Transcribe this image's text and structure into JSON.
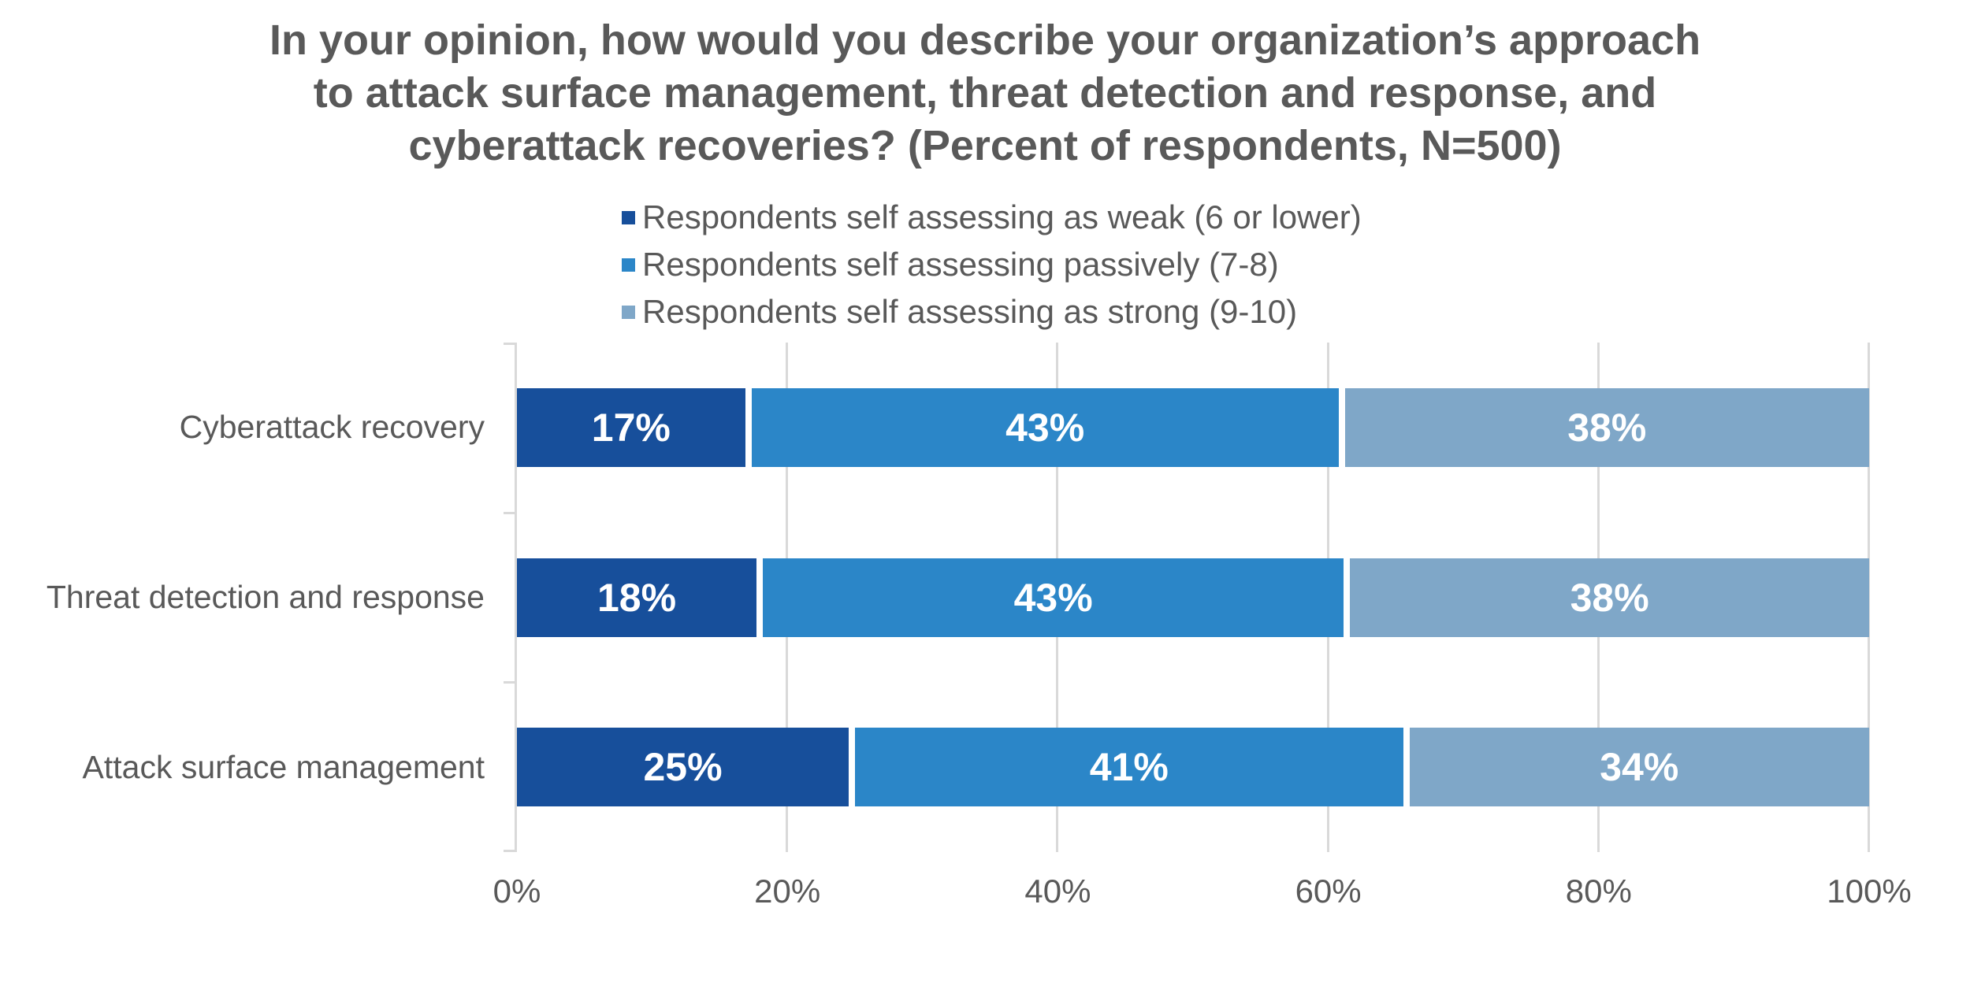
{
  "title": {
    "line1": "In your opinion, how would you describe your organization’s approach",
    "line2": "to attack surface management, threat detection and response, and",
    "line3": "cyberattack recoveries? (Percent of respondents, N=500)"
  },
  "chart_data": {
    "type": "bar",
    "orientation": "horizontal",
    "stacked": true,
    "title": "In your opinion, how would you describe your organization’s approach to attack surface management, threat detection and response, and cyberattack recoveries? (Percent of respondents, N=500)",
    "categories": [
      "Cyberattack recovery",
      "Threat detection and response",
      "Attack surface management"
    ],
    "series": [
      {
        "name": "Respondents self assessing as weak (6 or lower)",
        "color": "#174F9B",
        "values": [
          17,
          18,
          25
        ]
      },
      {
        "name": "Respondents self assessing passively (7-8)",
        "color": "#2B86C8",
        "values": [
          43,
          43,
          41
        ]
      },
      {
        "name": "Respondents self assessing as strong (9-10)",
        "color": "#7FA7C8",
        "values": [
          38,
          38,
          34
        ]
      }
    ],
    "value_suffix": "%",
    "xlim": [
      0,
      100
    ],
    "x_ticks": [
      "0%",
      "20%",
      "40%",
      "60%",
      "80%",
      "100%"
    ],
    "legend_position": "top",
    "grid": "vertical"
  },
  "colors": {
    "title_text": "#595959",
    "axis_text": "#595959",
    "category_text": "#595959",
    "bar_label_text": "#FFFFFF",
    "gridline": "#D9D9D9",
    "background": "#FFFFFF",
    "series_weak": "#174F9B",
    "series_passive": "#2B86C8",
    "series_strong": "#7FA7C8"
  }
}
